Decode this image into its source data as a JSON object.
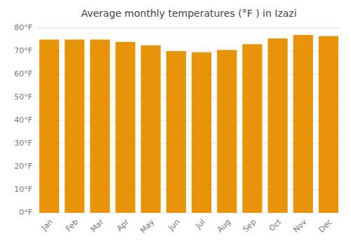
{
  "chart_data": {
    "type": "bar",
    "title": "Average monthly temperatures (°F ) in Izazi",
    "categories": [
      "Jan",
      "Feb",
      "Mar",
      "Apr",
      "May",
      "Jun",
      "Jul",
      "Aug",
      "Sep",
      "Oct",
      "Nov",
      "Dec"
    ],
    "values": [
      75,
      75,
      75,
      74,
      72.5,
      70,
      69.5,
      70.5,
      73,
      75.5,
      77,
      76.5
    ],
    "color": "#E8940A",
    "ylim": [
      0,
      80
    ],
    "yticks": [
      {
        "value": 0,
        "label": "0°F"
      },
      {
        "value": 10,
        "label": "10°F"
      },
      {
        "value": 20,
        "label": "20°F"
      },
      {
        "value": 30,
        "label": "30°F"
      },
      {
        "value": 40,
        "label": "40°F"
      },
      {
        "value": 50,
        "label": "50°F"
      },
      {
        "value": 60,
        "label": "60°F"
      },
      {
        "value": 70,
        "label": "70°F"
      },
      {
        "value": 80,
        "label": "80°F"
      }
    ],
    "grid": true
  }
}
